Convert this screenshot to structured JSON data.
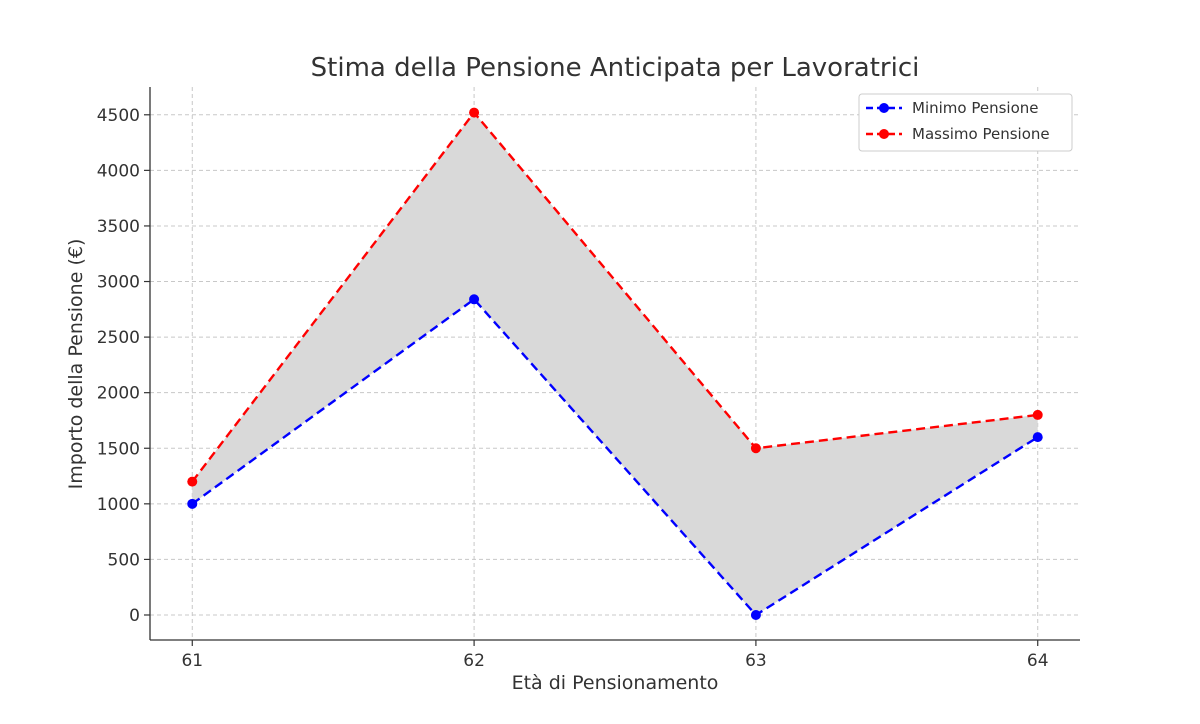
{
  "chart_data": {
    "type": "line",
    "title": "Stima della Pensione Anticipata per Lavoratrici",
    "xlabel": "Età di Pensionamento",
    "ylabel": "Importo della Pensione (€)",
    "x": [
      61,
      62,
      63,
      64
    ],
    "x_ticks": [
      "61",
      "62",
      "63",
      "64"
    ],
    "xlim": [
      60.85,
      64.15
    ],
    "ylim": [
      -225,
      4750
    ],
    "y_ticks": [
      0,
      500,
      1000,
      1500,
      2000,
      2500,
      3000,
      3500,
      4000,
      4500
    ],
    "grid": true,
    "legend_position": "top-right",
    "fill_between": {
      "lower_series": "Minimo Pensione",
      "upper_series": "Massimo Pensione",
      "color": "#d9d9d9"
    },
    "series": [
      {
        "name": "Minimo Pensione",
        "values": [
          1000,
          2840,
          0,
          1600
        ],
        "color": "#0000ff",
        "line_style": "dashed",
        "marker": "circle"
      },
      {
        "name": "Massimo Pensione",
        "values": [
          1200,
          4520,
          1500,
          1800
        ],
        "color": "#ff0000",
        "line_style": "dashed",
        "marker": "circle"
      }
    ]
  }
}
